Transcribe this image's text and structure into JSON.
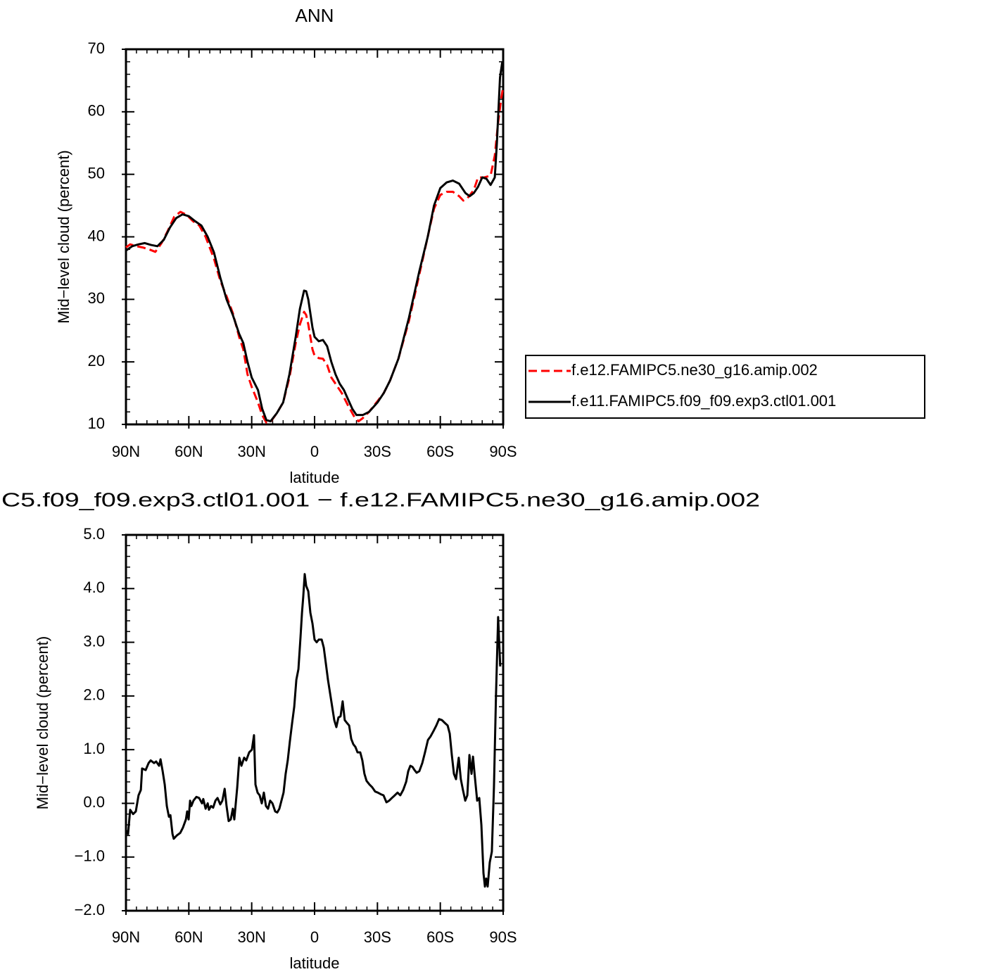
{
  "chart_data": [
    {
      "type": "line",
      "title": "ANN",
      "xlabel": "latitude",
      "ylabel": "Mid−level cloud (percent)",
      "xlim": [
        90,
        -90
      ],
      "xticks": [
        {
          "value": 90,
          "label": "90N"
        },
        {
          "value": 60,
          "label": "60N"
        },
        {
          "value": 30,
          "label": "30N"
        },
        0,
        {
          "value": -30,
          "label": "30S"
        },
        {
          "value": -60,
          "label": "60S"
        },
        {
          "value": -90,
          "label": "90S"
        }
      ],
      "ylim": [
        10,
        70
      ],
      "yticks": [
        10,
        20,
        30,
        40,
        50,
        60,
        70
      ],
      "legend": "right",
      "series": [
        {
          "name": "f.e12.FAMIPC5.ne30_g16.amip.002",
          "color": "#ff0000",
          "line_style": "dashed",
          "x": [
            90,
            88,
            85,
            82,
            79,
            76,
            73,
            70,
            67,
            64,
            61,
            58,
            55,
            52,
            48,
            45,
            42,
            39,
            36,
            34,
            32,
            30,
            27,
            25,
            23,
            21,
            18,
            15,
            12,
            9,
            7,
            5,
            4,
            3,
            1,
            0,
            -2,
            -4,
            -6,
            -8,
            -10,
            -13,
            -16,
            -19,
            -21,
            -23,
            -26,
            -30,
            -33,
            -36,
            -40,
            -45,
            -50,
            -54,
            -57,
            -60,
            -63,
            -66,
            -69,
            -71,
            -73,
            -76,
            -78,
            -81,
            -84,
            -86,
            -87.5,
            -89,
            -90
          ],
          "values": [
            38.3,
            38.8,
            38.5,
            38.3,
            38,
            37.6,
            39,
            41,
            43.2,
            44,
            43.5,
            42.5,
            41.8,
            40,
            36.5,
            33,
            30.5,
            27.8,
            24,
            22,
            18,
            16,
            13.5,
            11.5,
            10.3,
            10.4,
            11.8,
            13.5,
            17.5,
            23,
            26,
            28,
            27.5,
            26,
            22,
            21,
            20.6,
            20.5,
            19.5,
            17.5,
            16.5,
            15,
            13,
            11.2,
            10.5,
            11,
            12,
            13.7,
            15,
            17,
            20.5,
            26.5,
            34,
            40,
            44.5,
            46.7,
            47.2,
            47.2,
            46.5,
            45.8,
            46.2,
            47.5,
            49.5,
            49.5,
            49.8,
            53,
            58,
            62,
            64
          ]
        },
        {
          "name": "f.e11.FAMIPC5.f09_f09.exp3.ctl01.001",
          "color": "#000000",
          "line_style": "solid",
          "x": [
            90,
            87,
            84,
            81,
            78,
            75,
            72,
            69,
            66,
            63,
            60,
            57,
            54,
            51,
            48,
            45,
            42,
            39,
            36,
            34,
            32,
            30,
            27,
            25,
            23,
            21,
            18,
            15,
            12,
            9,
            7,
            5,
            4,
            3,
            1,
            0,
            -2,
            -4,
            -6,
            -8,
            -10,
            -12,
            -14,
            -16,
            -18,
            -20,
            -23,
            -26,
            -30,
            -33,
            -36,
            -40,
            -45,
            -50,
            -54,
            -57,
            -60,
            -63,
            -66,
            -69,
            -72,
            -74,
            -76,
            -78,
            -80,
            -82,
            -84,
            -86,
            -87,
            -88.5,
            -89.5,
            -90
          ],
          "values": [
            37.8,
            38.5,
            38.8,
            39,
            38.7,
            38.5,
            39.5,
            41.5,
            43,
            43.6,
            43.3,
            42.5,
            41.8,
            40,
            37.5,
            33.5,
            30,
            27.5,
            24.5,
            23,
            20,
            17.5,
            15.5,
            12.5,
            10.7,
            10.5,
            11.8,
            13.5,
            18,
            24,
            28.5,
            31.4,
            31.3,
            30,
            25.5,
            24,
            23.3,
            23.5,
            22.5,
            20,
            18,
            16.5,
            15.5,
            14,
            12.5,
            11.5,
            11.5,
            12,
            13.5,
            15,
            17,
            20.5,
            27,
            34.5,
            40,
            45,
            47.8,
            48.7,
            49,
            48.5,
            47,
            46.5,
            47,
            48,
            49.5,
            49.3,
            48.3,
            49.5,
            55,
            65.5,
            67.8,
            68
          ]
        }
      ]
    },
    {
      "type": "line",
      "title": "C5.f09_f09.exp3.ctl01.001 − f.e12.FAMIPC5.ne30_g16.amip.002",
      "xlabel": "latitude",
      "ylabel": "Mid−level cloud (percent)",
      "xlim": [
        90,
        -90
      ],
      "xticks": [
        {
          "value": 90,
          "label": "90N"
        },
        {
          "value": 60,
          "label": "60N"
        },
        {
          "value": 30,
          "label": "30N"
        },
        0,
        {
          "value": -30,
          "label": "30S"
        },
        {
          "value": -60,
          "label": "60S"
        },
        {
          "value": -90,
          "label": "90S"
        }
      ],
      "ylim": [
        -2,
        5
      ],
      "yticks": [
        {
          "value": -2,
          "label": "−2.0"
        },
        {
          "value": -1,
          "label": "−1.0"
        },
        {
          "value": 0,
          "label": "0.0"
        },
        {
          "value": 1,
          "label": "1.0"
        },
        {
          "value": 2,
          "label": "2.0"
        },
        {
          "value": 3,
          "label": "3.0"
        },
        {
          "value": 4,
          "label": "4.0"
        },
        {
          "value": 5,
          "label": "5.0"
        }
      ],
      "color": "#000000",
      "x": [
        90,
        89,
        88,
        86.6,
        85.3,
        84,
        82.9,
        82.3,
        80.6,
        79.2,
        78.2,
        76.6,
        75.6,
        74.2,
        73.5,
        72.5,
        71.5,
        70.5,
        69.5,
        68.8,
        67.8,
        67.2,
        65.8,
        64.1,
        62.8,
        61.4,
        60.8,
        60.1,
        59.4,
        58.8,
        57.8,
        56.4,
        55.1,
        53.7,
        53.1,
        52,
        51,
        50.4,
        49.4,
        48.4,
        47.3,
        46.3,
        45,
        44,
        42.9,
        42,
        41,
        40,
        39,
        38.3,
        36.9,
        35.9,
        34.9,
        33.6,
        32.6,
        31.2,
        29.9,
        28.9,
        28.2,
        27.2,
        26.2,
        25.2,
        24.2,
        23.2,
        22.2,
        21.2,
        20.1,
        18.8,
        17.8,
        16.8,
        15.8,
        14.8,
        13.8,
        12.8,
        11.8,
        10.7,
        9.7,
        8.7,
        7.7,
        6.7,
        6,
        5.4,
        4.7,
        4,
        3,
        2,
        1,
        0,
        -1,
        -2,
        -3.4,
        -4.4,
        -5.4,
        -6.4,
        -7.4,
        -8.4,
        -9.4,
        -10.4,
        -11.4,
        -12.4,
        -13.4,
        -14.4,
        -15.4,
        -16.5,
        -17.5,
        -18.5,
        -19.5,
        -20.5,
        -21.8,
        -22.8,
        -23.8,
        -24.8,
        -26.2,
        -27.5,
        -28.9,
        -30.2,
        -31.6,
        -32.9,
        -34.3,
        -35.6,
        -36.9,
        -38.3,
        -39.6,
        -40.9,
        -42.3,
        -43.7,
        -44.7,
        -45.7,
        -46.7,
        -47.7,
        -48.7,
        -50,
        -51.4,
        -52.7,
        -54.1,
        -55.4,
        -56.8,
        -58.1,
        -59.4,
        -60.8,
        -62.1,
        -63.5,
        -64.5,
        -65.5,
        -66.5,
        -67.5,
        -68.8,
        -69.8,
        -70.8,
        -71.9,
        -72.9,
        -73.9,
        -74.9,
        -75.6,
        -76.6,
        -77.6,
        -78.6,
        -79.6,
        -80.6,
        -81.3,
        -81.9,
        -82.6,
        -83.6,
        -84.6,
        -85.6,
        -86.6,
        -87.6,
        -88.6
      ],
      "values": [
        -0.5,
        -0.57,
        -0.12,
        -0.2,
        -0.15,
        0.15,
        0.25,
        0.65,
        0.62,
        0.75,
        0.8,
        0.75,
        0.78,
        0.7,
        0.82,
        0.6,
        0.35,
        -0.05,
        -0.25,
        -0.22,
        -0.57,
        -0.66,
        -0.6,
        -0.55,
        -0.45,
        -0.3,
        -0.15,
        -0.3,
        0.05,
        -0.05,
        0.05,
        0.12,
        0.1,
        0,
        0.08,
        -0.1,
        0,
        -0.12,
        -0.05,
        -0.08,
        0.05,
        0.1,
        -0.02,
        0.05,
        0.27,
        -0.05,
        -0.33,
        -0.3,
        -0.1,
        -0.3,
        0.3,
        0.85,
        0.7,
        0.85,
        0.8,
        0.95,
        1,
        1.27,
        0.35,
        0.2,
        0.15,
        0,
        0.2,
        -0.05,
        -0.1,
        0.05,
        0,
        -0.15,
        -0.17,
        -0.1,
        0.05,
        0.2,
        0.55,
        0.8,
        1.15,
        1.5,
        1.8,
        2.3,
        2.5,
        3.1,
        3.55,
        3.85,
        4.27,
        4.05,
        3.95,
        3.55,
        3.35,
        3.05,
        3,
        3.05,
        3.05,
        2.9,
        2.6,
        2.3,
        2.05,
        1.8,
        1.55,
        1.42,
        1.6,
        1.62,
        1.9,
        1.55,
        1.5,
        1.45,
        1.2,
        1.1,
        1.05,
        0.95,
        0.95,
        0.8,
        0.55,
        0.42,
        0.35,
        0.3,
        0.22,
        0.2,
        0.17,
        0.15,
        0.02,
        0.05,
        0.1,
        0.15,
        0.2,
        0.15,
        0.25,
        0.4,
        0.6,
        0.7,
        0.68,
        0.62,
        0.57,
        0.6,
        0.75,
        0.95,
        1.18,
        1.25,
        1.35,
        1.45,
        1.57,
        1.55,
        1.5,
        1.45,
        1.3,
        0.9,
        0.55,
        0.45,
        0.85,
        0.45,
        0.25,
        0.05,
        0.15,
        0.9,
        0.55,
        0.87,
        0.45,
        0.05,
        0.1,
        -0.4,
        -1.3,
        -1.55,
        -1.4,
        -1.55,
        -1.1,
        -0.9,
        0.3,
        2.05,
        3.47,
        2.55
      ]
    }
  ]
}
